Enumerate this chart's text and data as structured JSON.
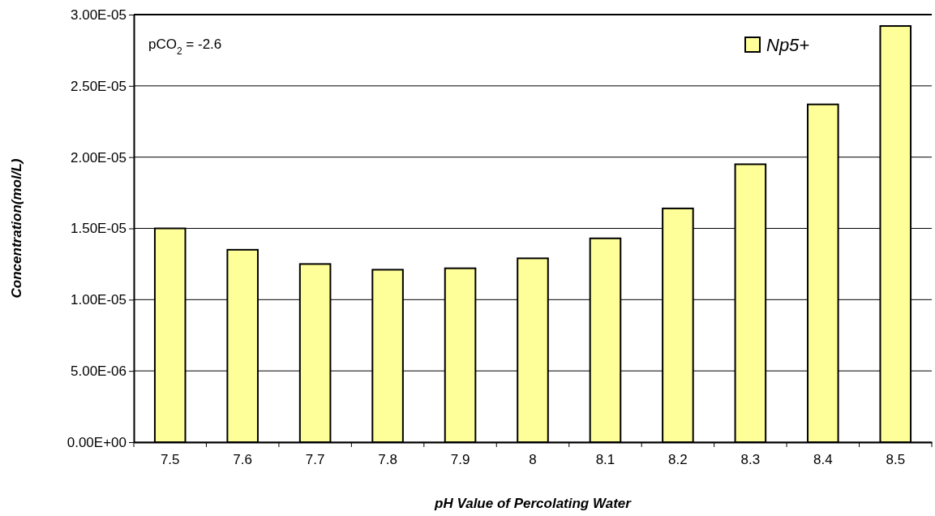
{
  "chart_data": {
    "type": "bar",
    "xlabel": "pH Value of Percolating Water",
    "ylabel": "Concentration(mol/L)",
    "categories": [
      "7.5",
      "7.6",
      "7.7",
      "7.8",
      "7.9",
      "8",
      "8.1",
      "8.2",
      "8.3",
      "8.4",
      "8.5"
    ],
    "series": [
      {
        "name": "Np5+",
        "color": "#ffff99",
        "values": [
          1.5e-05,
          1.35e-05,
          1.25e-05,
          1.21e-05,
          1.22e-05,
          1.29e-05,
          1.43e-05,
          1.64e-05,
          1.95e-05,
          2.37e-05,
          2.92e-05
        ]
      }
    ],
    "ylim": [
      0,
      3e-05
    ],
    "yticks": [
      {
        "value": 0,
        "label": "0.00E+00"
      },
      {
        "value": 5e-06,
        "label": "5.00E-06"
      },
      {
        "value": 1e-05,
        "label": "1.00E-05"
      },
      {
        "value": 1.5e-05,
        "label": "1.50E-05"
      },
      {
        "value": 2e-05,
        "label": "2.00E-05"
      },
      {
        "value": 2.5e-05,
        "label": "2.50E-05"
      },
      {
        "value": 3e-05,
        "label": "3.00E-05"
      }
    ],
    "grid": "y",
    "legend": "top right",
    "annotations": [
      "pCO$_{2}$ = -2.6"
    ]
  }
}
